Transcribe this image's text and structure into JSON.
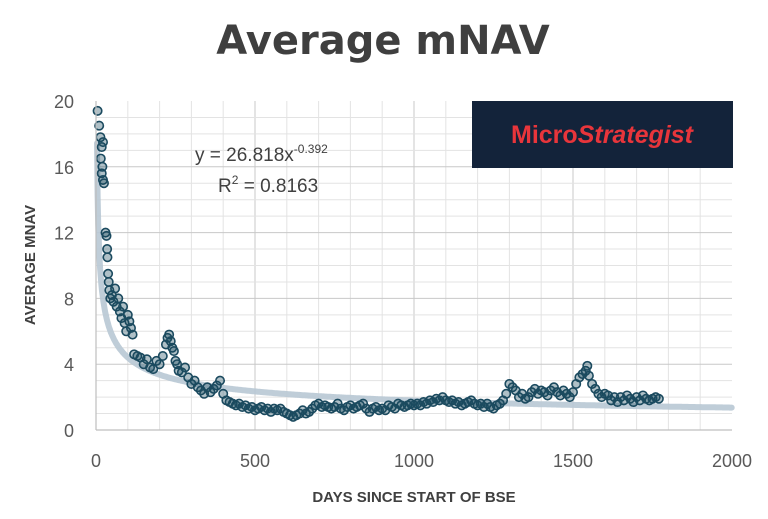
{
  "chart_data": {
    "type": "scatter",
    "title": "Average mNAV",
    "xlabel": "DAYS SINCE START OF BSE",
    "ylabel": "AVERAGE MNAV",
    "xlim": [
      0,
      2000
    ],
    "ylim": [
      0,
      20
    ],
    "x_ticks": [
      "0",
      "500",
      "1000",
      "1500",
      "2000"
    ],
    "y_ticks": [
      "0",
      "4",
      "8",
      "12",
      "16",
      "20"
    ],
    "grid": true,
    "marker_color": "#1b4a5f",
    "trendline_color": "#b8c8d4",
    "trendline": {
      "type": "power",
      "coefficient": 26.818,
      "exponent": -0.392,
      "equation_prefix": "y = 26.818x",
      "equation_exponent": "-0.392",
      "r_squared_prefix": "R",
      "r_squared_exp": "2",
      "r_squared_suffix": " = 0.8163"
    },
    "points": [
      [
        5,
        19.4
      ],
      [
        10,
        18.5
      ],
      [
        14,
        17.8
      ],
      [
        18,
        17.2
      ],
      [
        22,
        17.5
      ],
      [
        15,
        16.5
      ],
      [
        20,
        16.0
      ],
      [
        18,
        15.6
      ],
      [
        22,
        15.2
      ],
      [
        25,
        15.0
      ],
      [
        30,
        12.0
      ],
      [
        33,
        11.8
      ],
      [
        35,
        11.0
      ],
      [
        36,
        10.5
      ],
      [
        38,
        9.5
      ],
      [
        40,
        9.0
      ],
      [
        42,
        8.5
      ],
      [
        45,
        8.0
      ],
      [
        50,
        8.2
      ],
      [
        55,
        7.8
      ],
      [
        60,
        8.6
      ],
      [
        65,
        7.5
      ],
      [
        70,
        8.0
      ],
      [
        75,
        7.2
      ],
      [
        80,
        6.8
      ],
      [
        85,
        7.5
      ],
      [
        90,
        6.5
      ],
      [
        95,
        6.0
      ],
      [
        100,
        7.0
      ],
      [
        105,
        6.6
      ],
      [
        110,
        6.2
      ],
      [
        115,
        5.8
      ],
      [
        120,
        4.6
      ],
      [
        130,
        4.5
      ],
      [
        140,
        4.4
      ],
      [
        150,
        4.0
      ],
      [
        160,
        4.3
      ],
      [
        170,
        3.8
      ],
      [
        180,
        3.7
      ],
      [
        190,
        4.2
      ],
      [
        200,
        4.0
      ],
      [
        210,
        4.5
      ],
      [
        220,
        5.2
      ],
      [
        225,
        5.6
      ],
      [
        230,
        5.8
      ],
      [
        235,
        5.4
      ],
      [
        240,
        5.0
      ],
      [
        245,
        4.8
      ],
      [
        250,
        4.2
      ],
      [
        255,
        4.0
      ],
      [
        260,
        3.6
      ],
      [
        270,
        3.5
      ],
      [
        280,
        3.8
      ],
      [
        290,
        3.2
      ],
      [
        300,
        2.8
      ],
      [
        310,
        3.0
      ],
      [
        320,
        2.6
      ],
      [
        330,
        2.4
      ],
      [
        340,
        2.2
      ],
      [
        350,
        2.6
      ],
      [
        360,
        2.3
      ],
      [
        370,
        2.5
      ],
      [
        380,
        2.7
      ],
      [
        390,
        3.0
      ],
      [
        400,
        2.2
      ],
      [
        410,
        1.8
      ],
      [
        420,
        1.7
      ],
      [
        430,
        1.6
      ],
      [
        440,
        1.5
      ],
      [
        450,
        1.6
      ],
      [
        460,
        1.4
      ],
      [
        470,
        1.5
      ],
      [
        480,
        1.3
      ],
      [
        490,
        1.4
      ],
      [
        500,
        1.2
      ],
      [
        510,
        1.3
      ],
      [
        520,
        1.4
      ],
      [
        530,
        1.2
      ],
      [
        540,
        1.3
      ],
      [
        550,
        1.1
      ],
      [
        560,
        1.3
      ],
      [
        570,
        1.2
      ],
      [
        580,
        1.3
      ],
      [
        590,
        1.1
      ],
      [
        600,
        1.0
      ],
      [
        610,
        0.9
      ],
      [
        620,
        0.8
      ],
      [
        630,
        0.9
      ],
      [
        640,
        1.0
      ],
      [
        650,
        1.2
      ],
      [
        660,
        1.0
      ],
      [
        670,
        1.1
      ],
      [
        680,
        1.3
      ],
      [
        690,
        1.5
      ],
      [
        700,
        1.6
      ],
      [
        710,
        1.4
      ],
      [
        720,
        1.5
      ],
      [
        730,
        1.4
      ],
      [
        740,
        1.3
      ],
      [
        750,
        1.4
      ],
      [
        760,
        1.6
      ],
      [
        770,
        1.3
      ],
      [
        780,
        1.2
      ],
      [
        790,
        1.4
      ],
      [
        800,
        1.5
      ],
      [
        810,
        1.3
      ],
      [
        820,
        1.4
      ],
      [
        830,
        1.5
      ],
      [
        840,
        1.6
      ],
      [
        850,
        1.3
      ],
      [
        860,
        1.1
      ],
      [
        870,
        1.3
      ],
      [
        880,
        1.4
      ],
      [
        890,
        1.2
      ],
      [
        900,
        1.3
      ],
      [
        910,
        1.2
      ],
      [
        920,
        1.5
      ],
      [
        930,
        1.4
      ],
      [
        940,
        1.3
      ],
      [
        950,
        1.6
      ],
      [
        960,
        1.5
      ],
      [
        970,
        1.4
      ],
      [
        980,
        1.5
      ],
      [
        990,
        1.6
      ],
      [
        1000,
        1.5
      ],
      [
        1010,
        1.6
      ],
      [
        1020,
        1.5
      ],
      [
        1030,
        1.7
      ],
      [
        1040,
        1.6
      ],
      [
        1050,
        1.8
      ],
      [
        1060,
        1.7
      ],
      [
        1070,
        1.9
      ],
      [
        1080,
        1.8
      ],
      [
        1090,
        2.0
      ],
      [
        1100,
        1.8
      ],
      [
        1110,
        1.7
      ],
      [
        1120,
        1.8
      ],
      [
        1130,
        1.6
      ],
      [
        1140,
        1.7
      ],
      [
        1150,
        1.5
      ],
      [
        1160,
        1.6
      ],
      [
        1170,
        1.7
      ],
      [
        1180,
        1.8
      ],
      [
        1190,
        1.6
      ],
      [
        1200,
        1.5
      ],
      [
        1210,
        1.6
      ],
      [
        1220,
        1.4
      ],
      [
        1230,
        1.6
      ],
      [
        1240,
        1.4
      ],
      [
        1250,
        1.3
      ],
      [
        1260,
        1.5
      ],
      [
        1270,
        1.6
      ],
      [
        1280,
        1.8
      ],
      [
        1290,
        2.2
      ],
      [
        1300,
        2.8
      ],
      [
        1310,
        2.6
      ],
      [
        1320,
        2.4
      ],
      [
        1330,
        2.0
      ],
      [
        1340,
        2.2
      ],
      [
        1350,
        1.9
      ],
      [
        1360,
        2.0
      ],
      [
        1370,
        2.3
      ],
      [
        1380,
        2.5
      ],
      [
        1390,
        2.2
      ],
      [
        1400,
        2.4
      ],
      [
        1410,
        2.3
      ],
      [
        1420,
        2.1
      ],
      [
        1430,
        2.4
      ],
      [
        1440,
        2.6
      ],
      [
        1450,
        2.3
      ],
      [
        1460,
        2.1
      ],
      [
        1470,
        2.4
      ],
      [
        1480,
        2.2
      ],
      [
        1490,
        2.0
      ],
      [
        1500,
        2.3
      ],
      [
        1510,
        2.8
      ],
      [
        1520,
        3.2
      ],
      [
        1530,
        3.4
      ],
      [
        1540,
        3.6
      ],
      [
        1545,
        3.9
      ],
      [
        1550,
        3.3
      ],
      [
        1560,
        2.8
      ],
      [
        1570,
        2.5
      ],
      [
        1580,
        2.2
      ],
      [
        1590,
        2.0
      ],
      [
        1600,
        2.2
      ],
      [
        1610,
        2.1
      ],
      [
        1620,
        1.8
      ],
      [
        1630,
        2.0
      ],
      [
        1640,
        1.7
      ],
      [
        1650,
        2.0
      ],
      [
        1660,
        1.8
      ],
      [
        1670,
        2.1
      ],
      [
        1680,
        1.9
      ],
      [
        1690,
        1.7
      ],
      [
        1700,
        2.0
      ],
      [
        1710,
        1.8
      ],
      [
        1720,
        2.1
      ],
      [
        1730,
        1.9
      ],
      [
        1740,
        1.8
      ],
      [
        1750,
        1.9
      ],
      [
        1760,
        2.0
      ],
      [
        1770,
        1.9
      ]
    ]
  },
  "brand": {
    "logo_text_a": "Micro",
    "logo_text_b": "Strategist",
    "logo_bg": "#13233a",
    "logo_fg": "#e8353b"
  }
}
